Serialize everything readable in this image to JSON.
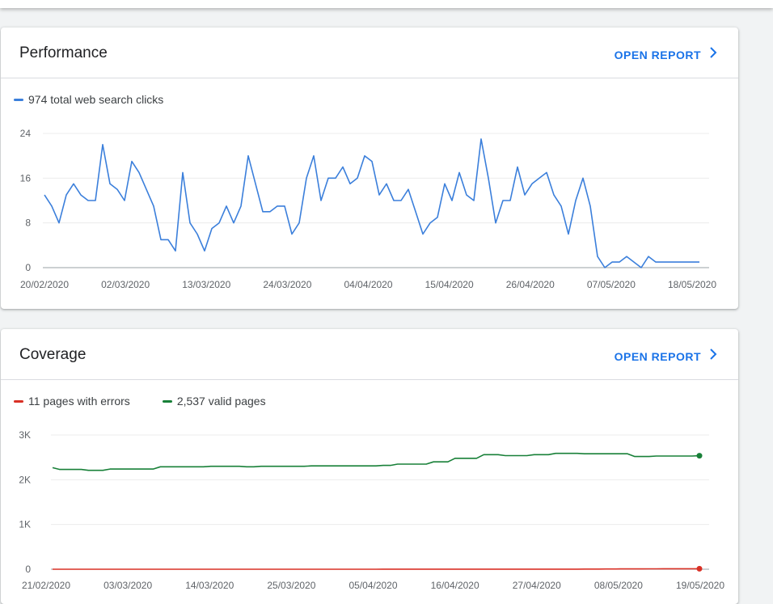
{
  "colors": {
    "clicks": "#3b7fdb",
    "errors": "#d93025",
    "valid": "#188038"
  },
  "performance": {
    "title": "Performance",
    "open_report": "OPEN REPORT",
    "chevron_icon": "chevron-right-icon",
    "legend": "974 total web search clicks"
  },
  "coverage": {
    "title": "Coverage",
    "open_report": "OPEN REPORT",
    "chevron_icon": "chevron-right-icon",
    "legend_errors": "11 pages with errors",
    "legend_valid": "2,537 valid pages"
  },
  "chart_data": [
    {
      "type": "line",
      "x_tick_labels": [
        "20/02/2020",
        "02/03/2020",
        "13/03/2020",
        "24/03/2020",
        "04/04/2020",
        "15/04/2020",
        "26/04/2020",
        "07/05/2020",
        "18/05/2020"
      ],
      "y_tick_labels": [
        "0",
        "8",
        "16",
        "24"
      ],
      "ylim": [
        0,
        24
      ],
      "grid": true,
      "series": [
        {
          "name": "974 total web search clicks",
          "values": [
            13,
            11,
            8,
            13,
            15,
            13,
            12,
            12,
            22,
            15,
            14,
            12,
            19,
            17,
            14,
            11,
            5,
            5,
            3,
            17,
            8,
            6,
            3,
            7,
            8,
            11,
            8,
            11,
            20,
            15,
            10,
            10,
            11,
            11,
            6,
            8,
            16,
            20,
            12,
            16,
            16,
            18,
            15,
            16,
            20,
            19,
            13,
            15,
            12,
            12,
            14,
            10,
            6,
            8,
            9,
            15,
            12,
            17,
            13,
            12,
            23,
            16,
            8,
            12,
            12,
            18,
            13,
            15,
            16,
            17,
            13,
            11,
            6,
            12,
            16,
            11,
            2,
            0,
            1,
            1,
            2,
            1,
            0,
            2,
            1,
            1,
            1,
            1,
            1,
            1,
            1
          ]
        }
      ]
    },
    {
      "type": "line",
      "x_tick_labels": [
        "21/02/2020",
        "03/03/2020",
        "14/03/2020",
        "25/03/2020",
        "05/04/2020",
        "16/04/2020",
        "27/04/2020",
        "08/05/2020",
        "19/05/2020"
      ],
      "y_tick_labels": [
        "0",
        "1K",
        "2K",
        "3K"
      ],
      "ylim": [
        0,
        3000
      ],
      "grid": true,
      "series": [
        {
          "name": "2,537 valid pages",
          "values": [
            2270,
            2230,
            2230,
            2230,
            2230,
            2210,
            2210,
            2210,
            2240,
            2240,
            2240,
            2240,
            2240,
            2240,
            2240,
            2290,
            2290,
            2290,
            2290,
            2290,
            2290,
            2290,
            2300,
            2300,
            2300,
            2300,
            2300,
            2290,
            2290,
            2300,
            2300,
            2300,
            2300,
            2300,
            2300,
            2300,
            2310,
            2310,
            2310,
            2310,
            2310,
            2310,
            2310,
            2310,
            2310,
            2310,
            2320,
            2320,
            2350,
            2350,
            2350,
            2350,
            2350,
            2400,
            2400,
            2400,
            2480,
            2480,
            2480,
            2480,
            2560,
            2560,
            2560,
            2540,
            2540,
            2540,
            2540,
            2560,
            2560,
            2560,
            2590,
            2590,
            2590,
            2590,
            2580,
            2580,
            2580,
            2580,
            2580,
            2580,
            2580,
            2520,
            2520,
            2520,
            2530,
            2530,
            2530,
            2530,
            2530,
            2530,
            2537
          ]
        },
        {
          "name": "11 pages with errors",
          "values": [
            0,
            0,
            0,
            0,
            0,
            0,
            0,
            0,
            0,
            0,
            0,
            0,
            0,
            0,
            0,
            0,
            0,
            0,
            0,
            0,
            0,
            0,
            0,
            0,
            0,
            0,
            0,
            0,
            0,
            0,
            0,
            0,
            0,
            0,
            0,
            0,
            0,
            0,
            0,
            0,
            0,
            0,
            0,
            0,
            0,
            0,
            1,
            1,
            1,
            1,
            1,
            2,
            2,
            2,
            2,
            2,
            2,
            2,
            2,
            2,
            2,
            2,
            2,
            2,
            2,
            2,
            2,
            2,
            2,
            2,
            2,
            2,
            2,
            2,
            3,
            3,
            3,
            5,
            5,
            7,
            7,
            8,
            8,
            9,
            9,
            10,
            10,
            10,
            11,
            11,
            11
          ]
        }
      ]
    }
  ]
}
